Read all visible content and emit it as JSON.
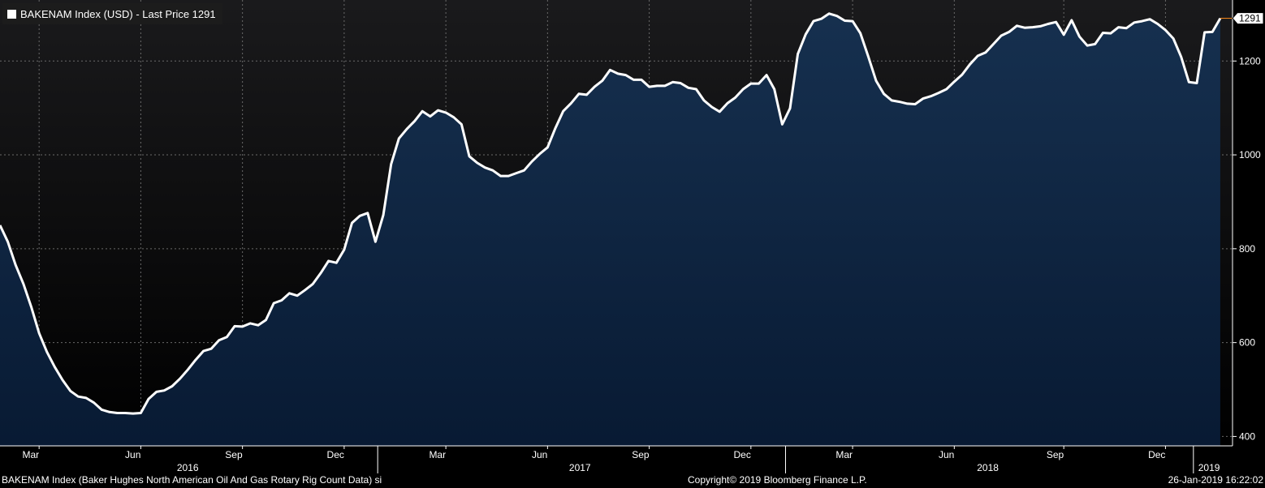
{
  "legend": {
    "label": "BAKENAM Index (USD) - Last Price 1291",
    "swatch_color": "#ffffff"
  },
  "footer": {
    "left": "BAKENAM Index (Baker Hughes North American Oil And Gas Rotary Rig Count Data) si",
    "center": "Copyright© 2019 Bloomberg Finance L.P.",
    "right": "26-Jan-2019 16:22:02"
  },
  "colors": {
    "background_top": "#1a1a1c",
    "area_top": "#16304f",
    "area_bottom": "#081a33",
    "line": "#ffffff",
    "last_marker": "#ff8c1a",
    "grid": "#6a6a6a"
  },
  "chart_data": {
    "type": "area",
    "title": "",
    "series": [
      {
        "name": "BAKENAM Index (USD)",
        "x": [
          "2016-01-29",
          "2016-02-05",
          "2016-02-12",
          "2016-02-19",
          "2016-02-26",
          "2016-03-04",
          "2016-03-11",
          "2016-03-18",
          "2016-03-25",
          "2016-04-01",
          "2016-04-08",
          "2016-04-15",
          "2016-04-22",
          "2016-04-29",
          "2016-05-06",
          "2016-05-13",
          "2016-05-20",
          "2016-05-27",
          "2016-06-03",
          "2016-06-10",
          "2016-06-17",
          "2016-06-24",
          "2016-07-01",
          "2016-07-08",
          "2016-07-15",
          "2016-07-22",
          "2016-07-29",
          "2016-08-05",
          "2016-08-12",
          "2016-08-19",
          "2016-08-26",
          "2016-09-02",
          "2016-09-09",
          "2016-09-16",
          "2016-09-23",
          "2016-09-30",
          "2016-10-07",
          "2016-10-14",
          "2016-10-21",
          "2016-10-28",
          "2016-11-04",
          "2016-11-11",
          "2016-11-18",
          "2016-11-25",
          "2016-12-02",
          "2016-12-09",
          "2016-12-16",
          "2016-12-23",
          "2016-12-30",
          "2017-01-06",
          "2017-01-13",
          "2017-01-20",
          "2017-01-27",
          "2017-02-03",
          "2017-02-10",
          "2017-02-17",
          "2017-02-24",
          "2017-03-03",
          "2017-03-10",
          "2017-03-17",
          "2017-03-24",
          "2017-03-31",
          "2017-04-07",
          "2017-04-14",
          "2017-04-21",
          "2017-04-28",
          "2017-05-05",
          "2017-05-12",
          "2017-05-19",
          "2017-05-26",
          "2017-06-02",
          "2017-06-09",
          "2017-06-16",
          "2017-06-23",
          "2017-06-30",
          "2017-07-07",
          "2017-07-14",
          "2017-07-21",
          "2017-07-28",
          "2017-08-04",
          "2017-08-11",
          "2017-08-18",
          "2017-08-25",
          "2017-09-01",
          "2017-09-08",
          "2017-09-15",
          "2017-09-22",
          "2017-09-29",
          "2017-10-06",
          "2017-10-13",
          "2017-10-20",
          "2017-10-27",
          "2017-11-03",
          "2017-11-10",
          "2017-11-17",
          "2017-11-24",
          "2017-12-01",
          "2017-12-08",
          "2017-12-15",
          "2017-12-22",
          "2017-12-29",
          "2018-01-05",
          "2018-01-12",
          "2018-01-19",
          "2018-01-26",
          "2018-02-02",
          "2018-02-09",
          "2018-02-16",
          "2018-02-23",
          "2018-03-02",
          "2018-03-09",
          "2018-03-16",
          "2018-03-23",
          "2018-03-30",
          "2018-04-06",
          "2018-04-13",
          "2018-04-20",
          "2018-04-27",
          "2018-05-04",
          "2018-05-11",
          "2018-05-18",
          "2018-05-25",
          "2018-06-01",
          "2018-06-08",
          "2018-06-15",
          "2018-06-22",
          "2018-06-29",
          "2018-07-06",
          "2018-07-13",
          "2018-07-20",
          "2018-07-27",
          "2018-08-03",
          "2018-08-10",
          "2018-08-17",
          "2018-08-24",
          "2018-08-31",
          "2018-09-07",
          "2018-09-14",
          "2018-09-21",
          "2018-09-28",
          "2018-10-05",
          "2018-10-12",
          "2018-10-19",
          "2018-10-26",
          "2018-11-02",
          "2018-11-09",
          "2018-11-16",
          "2018-11-23",
          "2018-11-30",
          "2018-12-07",
          "2018-12-14",
          "2018-12-21",
          "2018-12-28",
          "2019-01-04",
          "2019-01-11",
          "2019-01-18",
          "2019-01-25"
        ],
        "values": [
          850,
          815,
          765,
          725,
          676,
          620,
          580,
          548,
          520,
          497,
          485,
          482,
          472,
          457,
          452,
          450,
          450,
          449,
          450,
          480,
          495,
          498,
          507,
          523,
          542,
          563,
          582,
          587,
          605,
          612,
          635,
          634,
          641,
          637,
          648,
          684,
          690,
          705,
          700,
          712,
          725,
          748,
          774,
          770,
          798,
          855,
          870,
          876,
          815,
          872,
          980,
          1035,
          1055,
          1072,
          1093,
          1082,
          1095,
          1090,
          1080,
          1065,
          997,
          983,
          973,
          967,
          955,
          955,
          961,
          967,
          986,
          1002,
          1016,
          1057,
          1093,
          1110,
          1130,
          1128,
          1145,
          1158,
          1181,
          1173,
          1170,
          1160,
          1160,
          1145,
          1147,
          1147,
          1155,
          1153,
          1143,
          1140,
          1116,
          1102,
          1092,
          1110,
          1122,
          1140,
          1152,
          1152,
          1170,
          1140,
          1065,
          1099,
          1215,
          1257,
          1285,
          1290,
          1301,
          1296,
          1286,
          1285,
          1259,
          1210,
          1158,
          1130,
          1116,
          1113,
          1109,
          1108,
          1120,
          1125,
          1132,
          1140,
          1156,
          1171,
          1193,
          1211,
          1218,
          1236,
          1254,
          1262,
          1275,
          1271,
          1272,
          1274,
          1279,
          1283,
          1256,
          1287,
          1252,
          1233,
          1236,
          1260,
          1259,
          1272,
          1270,
          1282,
          1285,
          1289,
          1279,
          1266,
          1248,
          1209,
          1155,
          1153,
          1261,
          1262,
          1291
        ]
      }
    ],
    "last_price": 1291,
    "ylim": [
      380,
      1330
    ],
    "yticks": [
      400,
      600,
      800,
      1000,
      1200
    ],
    "xrange": [
      "2016-01-29",
      "2019-02-05"
    ],
    "xticks": [
      {
        "label": "Mar",
        "date": "2016-03-04"
      },
      {
        "label": "Jun",
        "date": "2016-06-03"
      },
      {
        "label": "Sep",
        "date": "2016-09-02"
      },
      {
        "label": "Dec",
        "date": "2016-12-02"
      },
      {
        "label": "Mar",
        "date": "2017-03-03"
      },
      {
        "label": "Jun",
        "date": "2017-06-02"
      },
      {
        "label": "Sep",
        "date": "2017-09-01"
      },
      {
        "label": "Dec",
        "date": "2017-12-01"
      },
      {
        "label": "Mar",
        "date": "2018-03-02"
      },
      {
        "label": "Jun",
        "date": "2018-06-01"
      },
      {
        "label": "Sep",
        "date": "2018-09-07"
      },
      {
        "label": "Dec",
        "date": "2018-12-07"
      }
    ],
    "years": [
      {
        "label": "2016",
        "date": "2016-07-15"
      },
      {
        "label": "2017",
        "date": "2017-07-01"
      },
      {
        "label": "2018",
        "date": "2018-07-01"
      },
      {
        "label": "2019",
        "date": "2019-01-15"
      }
    ],
    "year_boundaries": [
      "2017-01-01",
      "2018-01-01",
      "2019-01-01"
    ],
    "grid": true,
    "yaxis_side": "right"
  }
}
